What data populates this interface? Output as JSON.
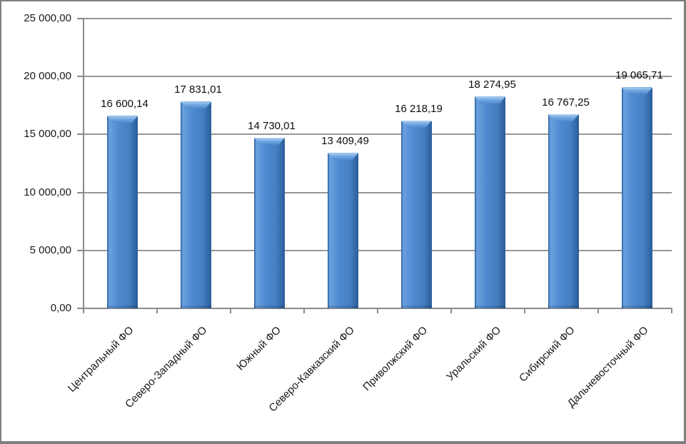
{
  "chart_data": {
    "type": "bar",
    "title": "",
    "categories": [
      "Центральный ФО",
      "Северо-Западный ФО",
      "Южный ФО",
      "Северо-Кавказский ФО",
      "Приволжский ФО",
      "Уральский ФО",
      "Сибирский ФО",
      "Дальневосточный ФО"
    ],
    "values": [
      16600.14,
      17831.01,
      14730.01,
      13409.49,
      16218.19,
      18274.95,
      16767.25,
      19065.71
    ],
    "value_labels": [
      "16 600,14",
      "17 831,01",
      "14 730,01",
      "13 409,49",
      "16 218,19",
      "18 274,95",
      "16 767,25",
      "19 065,71"
    ],
    "y_tick_values": [
      0,
      5000,
      10000,
      15000,
      20000,
      25000
    ],
    "y_tick_labels": [
      "0,00",
      "5 000,00",
      "10 000,00",
      "15 000,00",
      "20 000,00",
      "25 000,00"
    ],
    "ylim": [
      0,
      25000
    ],
    "xlabel": "",
    "ylabel": "",
    "grid": true,
    "legend": "none",
    "bar_color": "#4e89cf",
    "gridline_color": "#969696",
    "axis_color": "#8a8a8a",
    "label_rotation_deg": -45
  }
}
